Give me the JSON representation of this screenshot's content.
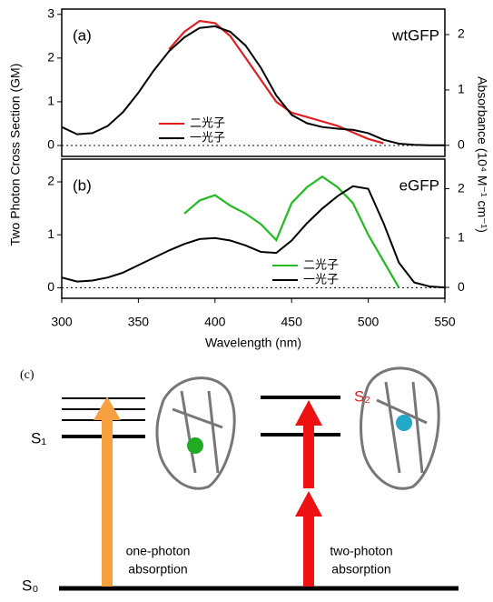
{
  "chart_data": [
    {
      "type": "line",
      "label": "(a)",
      "annotation": "wtGFP",
      "ylabel": "Two Photon Cross Section (GM)",
      "y2label": "Absorbance (10⁴ M⁻¹ cm⁻¹)",
      "x": [
        300,
        310,
        320,
        330,
        340,
        350,
        360,
        370,
        380,
        390,
        400,
        410,
        420,
        430,
        440,
        450,
        460,
        470,
        480,
        490,
        500,
        510,
        520,
        530,
        540,
        550
      ],
      "xlim": [
        300,
        550
      ],
      "ylim": [
        -0.25,
        3.12
      ],
      "yticks": [
        0,
        1,
        2,
        3
      ],
      "y2lim": [
        -0.2,
        2.46
      ],
      "y2ticks": [
        0,
        1,
        2
      ],
      "legend": "lower center",
      "grid": false,
      "series": [
        {
          "name": "二光子",
          "color": "#e02020",
          "values": [
            null,
            null,
            null,
            null,
            null,
            null,
            null,
            2.2,
            2.6,
            2.85,
            2.8,
            2.5,
            2.0,
            1.5,
            1.0,
            0.75,
            0.65,
            0.55,
            0.45,
            0.3,
            0.15,
            0.05,
            null,
            null,
            null,
            null
          ]
        },
        {
          "name": "一光子",
          "color": "#000000",
          "axis": "y2",
          "values": [
            0.33,
            0.2,
            0.22,
            0.35,
            0.6,
            0.95,
            1.35,
            1.7,
            1.95,
            2.12,
            2.15,
            2.05,
            1.8,
            1.4,
            0.9,
            0.55,
            0.4,
            0.33,
            0.3,
            0.28,
            0.22,
            0.1,
            0.03,
            0.01,
            0,
            0
          ]
        }
      ]
    },
    {
      "type": "line",
      "label": "(b)",
      "annotation": "eGFP",
      "xlabel": "Wavelength (nm)",
      "x": [
        300,
        310,
        320,
        330,
        340,
        350,
        360,
        370,
        380,
        390,
        400,
        410,
        420,
        430,
        440,
        450,
        460,
        470,
        480,
        490,
        500,
        510,
        520,
        530,
        540,
        550
      ],
      "xlim": [
        300,
        550
      ],
      "xticks": [
        300,
        350,
        400,
        450,
        500,
        550
      ],
      "ylim": [
        -0.2,
        2.43
      ],
      "yticks": [
        0,
        1,
        2
      ],
      "y2lim": [
        -0.22,
        2.6
      ],
      "y2ticks": [
        0,
        1,
        2
      ],
      "legend": "lower right",
      "grid": false,
      "series": [
        {
          "name": "二光子",
          "color": "#22bb22",
          "values": [
            null,
            null,
            null,
            null,
            null,
            null,
            null,
            null,
            1.4,
            1.65,
            1.75,
            1.55,
            1.4,
            1.2,
            0.9,
            1.6,
            1.9,
            2.1,
            1.9,
            1.6,
            1.0,
            0.5,
            0.0,
            null,
            null,
            null
          ]
        },
        {
          "name": "一光子",
          "color": "#000000",
          "axis": "y2",
          "values": [
            0.2,
            0.12,
            0.14,
            0.2,
            0.3,
            0.45,
            0.6,
            0.75,
            0.88,
            0.98,
            1.0,
            0.95,
            0.85,
            0.72,
            0.7,
            0.95,
            1.3,
            1.6,
            1.85,
            2.05,
            2.0,
            1.3,
            0.5,
            0.1,
            0.02,
            0
          ]
        }
      ]
    }
  ],
  "diagram": {
    "panel_label": "(c)",
    "s1": "S₁",
    "s2": "S₂",
    "s0": "S₀",
    "one_photon": [
      "one-photon",
      "absorption"
    ],
    "two_photon": [
      "two-photon",
      "absorption"
    ]
  }
}
